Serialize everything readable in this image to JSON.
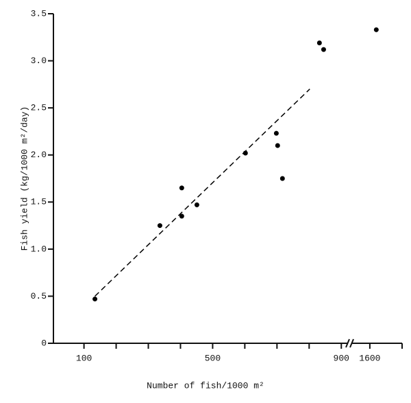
{
  "chart_data": {
    "type": "scatter",
    "x_label": "Number of fish/1000 m²",
    "y_label": "Fish yield (kg/1000 m²/day)",
    "x_segments": [
      {
        "xlim": [
          5,
          925
        ],
        "xticks": [
          100,
          500,
          900
        ],
        "xminorticks": [
          200,
          300,
          400,
          600,
          700,
          800
        ]
      },
      {
        "xlim": [
          1545,
          1700
        ],
        "xticks": [
          1600
        ],
        "xminorticks": [
          1700
        ]
      }
    ],
    "ylim": [
      0,
      3.5
    ],
    "yticks": [
      0,
      0.5,
      {
        "value": 1.0,
        "label": "1.0"
      },
      1.5,
      {
        "value": 2.0,
        "label": "2.0"
      },
      2.5,
      {
        "value": 3.0,
        "label": "3.0"
      },
      3.5
    ],
    "series": [
      {
        "color": "#000000",
        "x": [
          134,
          336,
          404,
          404,
          451,
          602,
          698,
          702,
          717,
          832,
          845,
          1620
        ],
        "y": [
          0.47,
          1.25,
          1.65,
          1.35,
          1.47,
          2.02,
          2.23,
          2.1,
          1.75,
          3.19,
          3.12,
          3.33
        ]
      }
    ],
    "trend_line": {
      "x": [
        134,
        802
      ],
      "y": [
        0.5,
        2.7
      ],
      "color": "#000000",
      "dashed": true
    }
  }
}
